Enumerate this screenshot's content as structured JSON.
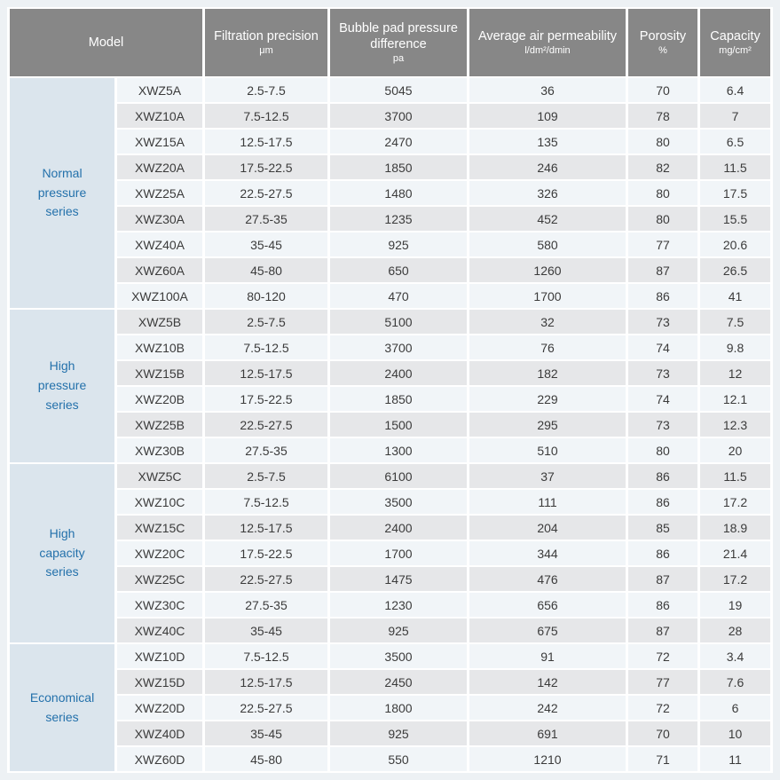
{
  "colors": {
    "page_background": "#edf1f4",
    "header_background": "#878787",
    "header_text": "#ffffff",
    "series_background": "#dbe5ed",
    "series_text": "#2471ab",
    "row_light": "#f1f5f8",
    "row_dark": "#e6e7e9",
    "body_text": "#3b3b3b",
    "cell_gap": "#ffffff"
  },
  "table": {
    "headers": [
      {
        "title": "Model",
        "unit": ""
      },
      {
        "title": "Filtration precision",
        "unit": "μm"
      },
      {
        "title": "Bubble pad pressure difference",
        "unit": "pa"
      },
      {
        "title": "Average air permeability",
        "unit": "l/dm²/dmin"
      },
      {
        "title": "Porosity",
        "unit": "%"
      },
      {
        "title": "Capacity",
        "unit": "mg/cm²"
      }
    ],
    "groups": [
      {
        "series": "Normal pressure series",
        "rows": [
          {
            "model": "XWZ5A",
            "precision": "2.5-7.5",
            "pressure": "5045",
            "permeability": "36",
            "porosity": "70",
            "capacity": "6.4"
          },
          {
            "model": "XWZ10A",
            "precision": "7.5-12.5",
            "pressure": "3700",
            "permeability": "109",
            "porosity": "78",
            "capacity": "7"
          },
          {
            "model": "XWZ15A",
            "precision": "12.5-17.5",
            "pressure": "2470",
            "permeability": "135",
            "porosity": "80",
            "capacity": "6.5"
          },
          {
            "model": "XWZ20A",
            "precision": "17.5-22.5",
            "pressure": "1850",
            "permeability": "246",
            "porosity": "82",
            "capacity": "11.5"
          },
          {
            "model": "XWZ25A",
            "precision": "22.5-27.5",
            "pressure": "1480",
            "permeability": "326",
            "porosity": "80",
            "capacity": "17.5"
          },
          {
            "model": "XWZ30A",
            "precision": "27.5-35",
            "pressure": "1235",
            "permeability": "452",
            "porosity": "80",
            "capacity": "15.5"
          },
          {
            "model": "XWZ40A",
            "precision": "35-45",
            "pressure": "925",
            "permeability": "580",
            "porosity": "77",
            "capacity": "20.6"
          },
          {
            "model": "XWZ60A",
            "precision": "45-80",
            "pressure": "650",
            "permeability": "1260",
            "porosity": "87",
            "capacity": "26.5"
          },
          {
            "model": "XWZ100A",
            "precision": "80-120",
            "pressure": "470",
            "permeability": "1700",
            "porosity": "86",
            "capacity": "41"
          }
        ]
      },
      {
        "series": "High pressure series",
        "rows": [
          {
            "model": "XWZ5B",
            "precision": "2.5-7.5",
            "pressure": "5100",
            "permeability": "32",
            "porosity": "73",
            "capacity": "7.5"
          },
          {
            "model": "XWZ10B",
            "precision": "7.5-12.5",
            "pressure": "3700",
            "permeability": "76",
            "porosity": "74",
            "capacity": "9.8"
          },
          {
            "model": "XWZ15B",
            "precision": "12.5-17.5",
            "pressure": "2400",
            "permeability": "182",
            "porosity": "73",
            "capacity": "12"
          },
          {
            "model": "XWZ20B",
            "precision": "17.5-22.5",
            "pressure": "1850",
            "permeability": "229",
            "porosity": "74",
            "capacity": "12.1"
          },
          {
            "model": "XWZ25B",
            "precision": "22.5-27.5",
            "pressure": "1500",
            "permeability": "295",
            "porosity": "73",
            "capacity": "12.3"
          },
          {
            "model": "XWZ30B",
            "precision": "27.5-35",
            "pressure": "1300",
            "permeability": "510",
            "porosity": "80",
            "capacity": "20"
          }
        ]
      },
      {
        "series": "High capacity series",
        "rows": [
          {
            "model": "XWZ5C",
            "precision": "2.5-7.5",
            "pressure": "6100",
            "permeability": "37",
            "porosity": "86",
            "capacity": "11.5"
          },
          {
            "model": "XWZ10C",
            "precision": "7.5-12.5",
            "pressure": "3500",
            "permeability": "111",
            "porosity": "86",
            "capacity": "17.2"
          },
          {
            "model": "XWZ15C",
            "precision": "12.5-17.5",
            "pressure": "2400",
            "permeability": "204",
            "porosity": "85",
            "capacity": "18.9"
          },
          {
            "model": "XWZ20C",
            "precision": "17.5-22.5",
            "pressure": "1700",
            "permeability": "344",
            "porosity": "86",
            "capacity": "21.4"
          },
          {
            "model": "XWZ25C",
            "precision": "22.5-27.5",
            "pressure": "1475",
            "permeability": "476",
            "porosity": "87",
            "capacity": "17.2"
          },
          {
            "model": "XWZ30C",
            "precision": "27.5-35",
            "pressure": "1230",
            "permeability": "656",
            "porosity": "86",
            "capacity": "19"
          },
          {
            "model": "XWZ40C",
            "precision": "35-45",
            "pressure": "925",
            "permeability": "675",
            "porosity": "87",
            "capacity": "28"
          }
        ]
      },
      {
        "series": "Economical series",
        "rows": [
          {
            "model": "XWZ10D",
            "precision": "7.5-12.5",
            "pressure": "3500",
            "permeability": "91",
            "porosity": "72",
            "capacity": "3.4"
          },
          {
            "model": "XWZ15D",
            "precision": "12.5-17.5",
            "pressure": "2450",
            "permeability": "142",
            "porosity": "77",
            "capacity": "7.6"
          },
          {
            "model": "XWZ20D",
            "precision": "22.5-27.5",
            "pressure": "1800",
            "permeability": "242",
            "porosity": "72",
            "capacity": "6"
          },
          {
            "model": "XWZ40D",
            "precision": "35-45",
            "pressure": "925",
            "permeability": "691",
            "porosity": "70",
            "capacity": "10"
          },
          {
            "model": "XWZ60D",
            "precision": "45-80",
            "pressure": "550",
            "permeability": "1210",
            "porosity": "71",
            "capacity": "11"
          }
        ]
      }
    ]
  }
}
